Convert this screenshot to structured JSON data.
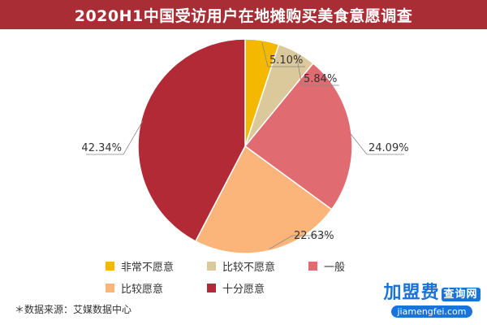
{
  "header": {
    "title": "2020H1中国受访用户在地摊购买美食意愿调查"
  },
  "chart_data": {
    "type": "pie",
    "start_angle_deg": 0,
    "direction": "clockwise",
    "slices": [
      {
        "label": "非常不愿意",
        "value": 5.1,
        "display": "5.10%",
        "color": "#f5b800"
      },
      {
        "label": "比较不愿意",
        "value": 5.84,
        "display": "5.84%",
        "color": "#dcc99b"
      },
      {
        "label": "一般",
        "value": 24.09,
        "display": "24.09%",
        "color": "#e06b70"
      },
      {
        "label": "比较愿意",
        "value": 22.63,
        "display": "22.63%",
        "color": "#fbb47a"
      },
      {
        "label": "十分愿意",
        "value": 42.34,
        "display": "42.34%",
        "color": "#b22a35"
      }
    ],
    "legend_position": "bottom"
  },
  "source_note": "＊数据来源：艾媒数据中心",
  "watermark": {
    "brand": "加盟费",
    "tag": "查询网",
    "url": "jiamengfei.com"
  }
}
